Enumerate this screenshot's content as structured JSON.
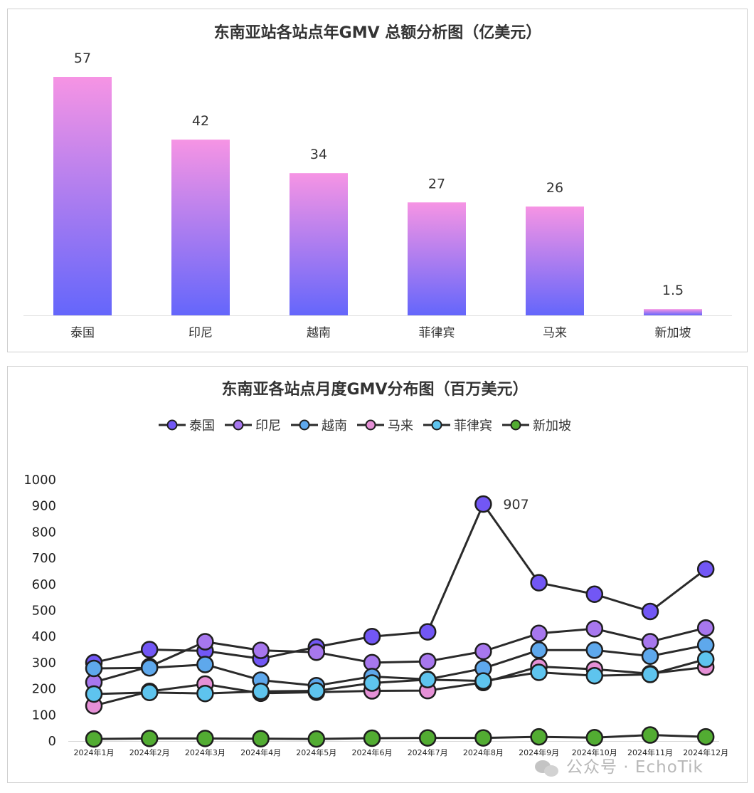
{
  "chart_data": [
    {
      "type": "bar",
      "title": "东南亚站各站点年GMV 总额分析图（亿美元）",
      "categories": [
        "泰国",
        "印尼",
        "越南",
        "菲律宾",
        "马来",
        "新加坡"
      ],
      "values": [
        57,
        42,
        34,
        27,
        26,
        1.5
      ],
      "value_labels": [
        "57",
        "42",
        "34",
        "27",
        "26",
        "1.5"
      ],
      "ylim": [
        0,
        57
      ],
      "grid": false,
      "legend": "none",
      "colors": {
        "bar_top": "#f694e4",
        "bar_bottom": "#6466fb"
      }
    },
    {
      "type": "line",
      "title": "东南亚各站点月度GMV分布图（百万美元）",
      "x": [
        "2024年1月",
        "2024年2月",
        "2024年3月",
        "2024年4月",
        "2024年5月",
        "2024年6月",
        "2024年7月",
        "2024年8月",
        "2024年9月",
        "2024年10月",
        "2024年11月",
        "2024年12月"
      ],
      "ylim": [
        0,
        1000
      ],
      "yticks": [
        "0",
        "100",
        "200",
        "300",
        "400",
        "500",
        "600",
        "700",
        "800",
        "900",
        "1000"
      ],
      "grid": false,
      "legend": "top-center",
      "annotation": {
        "series": "泰国",
        "index": 7,
        "text": "907"
      },
      "series": [
        {
          "name": "泰国",
          "color": "#7257f5",
          "values": [
            300,
            350,
            345,
            315,
            360,
            400,
            418,
            907,
            606,
            562,
            496,
            658
          ]
        },
        {
          "name": "印尼",
          "color": "#a777ee",
          "values": [
            225,
            285,
            380,
            347,
            340,
            300,
            305,
            343,
            412,
            430,
            380,
            433
          ]
        },
        {
          "name": "越南",
          "color": "#5ea8ec",
          "values": [
            278,
            280,
            293,
            233,
            212,
            247,
            236,
            278,
            348,
            348,
            325,
            367
          ]
        },
        {
          "name": "马来",
          "color": "#e590d6",
          "values": [
            135,
            190,
            218,
            183,
            187,
            192,
            193,
            224,
            285,
            275,
            258,
            283
          ]
        },
        {
          "name": "菲律宾",
          "color": "#5ec4ee",
          "values": [
            180,
            186,
            182,
            190,
            192,
            222,
            235,
            230,
            263,
            250,
            255,
            313
          ]
        },
        {
          "name": "新加坡",
          "color": "#52ac32",
          "values": [
            8,
            10,
            10,
            9,
            8,
            11,
            12,
            12,
            16,
            13,
            23,
            16
          ]
        }
      ]
    }
  ],
  "watermark": {
    "text": "公众号 · EchoTik",
    "icon": "wechat-icon"
  }
}
